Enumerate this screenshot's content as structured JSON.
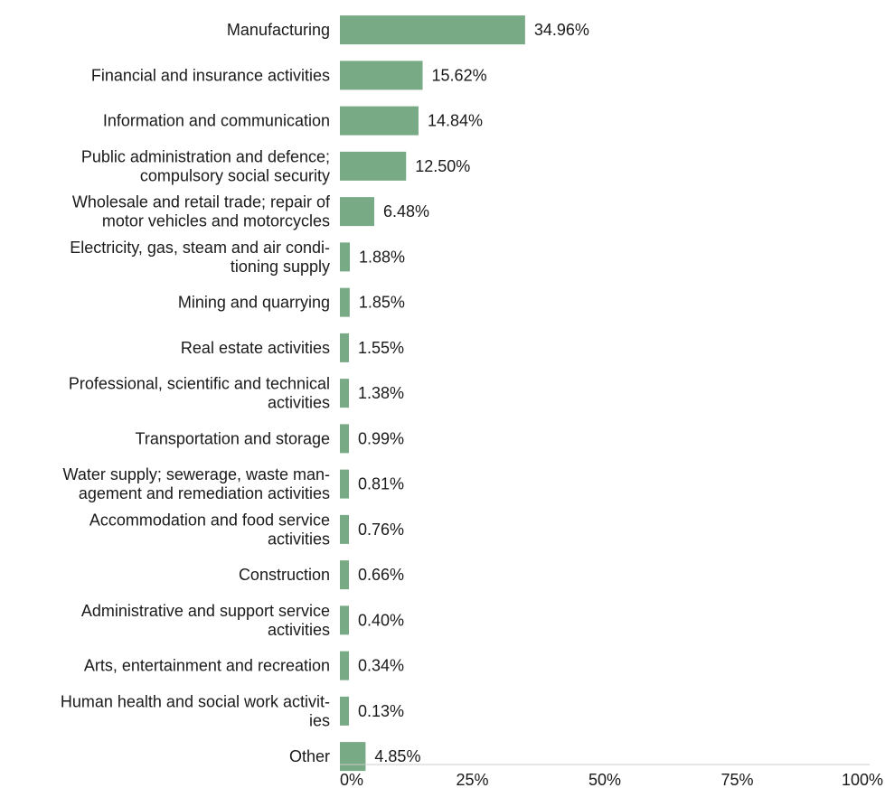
{
  "chart_data": {
    "type": "bar",
    "orientation": "horizontal",
    "categories": [
      [
        "Manufacturing"
      ],
      [
        "Financial and insurance activities"
      ],
      [
        "Information and communication"
      ],
      [
        "Public administration and defence;",
        "compulsory social security"
      ],
      [
        "Wholesale and retail trade; repair of",
        "motor vehicles and motorcycles"
      ],
      [
        "Electricity, gas, steam and air condi-",
        "tioning supply"
      ],
      [
        "Mining and quarrying"
      ],
      [
        "Real estate activities"
      ],
      [
        "Professional, scientific and technical",
        "activities"
      ],
      [
        "Transportation and storage"
      ],
      [
        "Water supply; sewerage, waste man-",
        "agement and remediation activities"
      ],
      [
        "Accommodation and food service",
        "activities"
      ],
      [
        "Construction"
      ],
      [
        "Administrative and support service",
        "activities"
      ],
      [
        "Arts, entertainment and recreation"
      ],
      [
        "Human health and social work activit-",
        "ies"
      ],
      [
        "Other"
      ]
    ],
    "values": [
      34.96,
      15.62,
      14.84,
      12.5,
      6.48,
      1.88,
      1.85,
      1.55,
      1.38,
      0.99,
      0.81,
      0.76,
      0.66,
      0.4,
      0.34,
      0.13,
      4.85
    ],
    "value_labels": [
      "34.96%",
      "15.62%",
      "14.84%",
      "12.50%",
      "6.48%",
      "1.88%",
      "1.85%",
      "1.55%",
      "1.38%",
      "0.99%",
      "0.81%",
      "0.76%",
      "0.66%",
      "0.40%",
      "0.34%",
      "0.13%",
      "4.85%"
    ],
    "xlim": [
      0,
      100
    ],
    "xticks": [
      0,
      25,
      50,
      75,
      100
    ],
    "xtick_labels": [
      "0%",
      "25%",
      "50%",
      "75%",
      "100%"
    ],
    "bar_color": "#78aa85",
    "axis_color": "#cccccc",
    "grid": false,
    "legend": "none"
  }
}
